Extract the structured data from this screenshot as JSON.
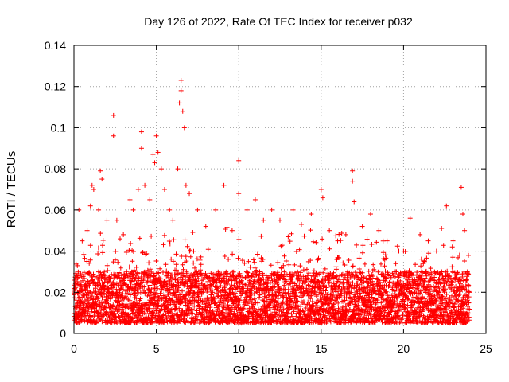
{
  "chart_data": {
    "type": "scatter",
    "title": "Day 126 of 2022, Rate Of TEC Index for receiver p032",
    "xlabel": "GPS time / hours",
    "ylabel": "ROTI / TECUs",
    "xlim": [
      0,
      25
    ],
    "ylim": [
      0,
      0.14
    ],
    "xticks": [
      0,
      5,
      10,
      15,
      20,
      25
    ],
    "yticks": [
      0,
      0.02,
      0.04,
      0.06,
      0.08,
      0.1,
      0.12,
      0.14
    ],
    "xtick_labels": [
      "0",
      "5",
      "10",
      "15",
      "20",
      "25"
    ],
    "ytick_labels": [
      "0",
      "0.02",
      "0.04",
      "0.06",
      "0.08",
      "0.1",
      "0.12",
      "0.14"
    ],
    "grid": true,
    "marker": "+",
    "color": "#ff0000",
    "data_x_range": [
      0,
      24
    ],
    "baseline_range": [
      0.005,
      0.03
    ],
    "series": [
      {
        "values": [
          [
            0.2,
            0.028
          ],
          [
            0.3,
            0.06
          ],
          [
            0.5,
            0.045
          ],
          [
            0.8,
            0.05
          ],
          [
            1.0,
            0.062
          ],
          [
            1.1,
            0.072
          ],
          [
            1.2,
            0.07
          ],
          [
            1.5,
            0.06
          ],
          [
            1.6,
            0.079
          ],
          [
            1.7,
            0.075
          ],
          [
            2.0,
            0.055
          ],
          [
            2.4,
            0.106
          ],
          [
            2.4,
            0.096
          ],
          [
            2.6,
            0.055
          ],
          [
            3.0,
            0.048
          ],
          [
            3.4,
            0.065
          ],
          [
            3.6,
            0.06
          ],
          [
            3.9,
            0.07
          ],
          [
            4.1,
            0.098
          ],
          [
            4.1,
            0.09
          ],
          [
            4.3,
            0.072
          ],
          [
            4.6,
            0.065
          ],
          [
            4.8,
            0.087
          ],
          [
            4.9,
            0.083
          ],
          [
            5.0,
            0.096
          ],
          [
            5.1,
            0.088
          ],
          [
            5.3,
            0.08
          ],
          [
            5.5,
            0.07
          ],
          [
            5.8,
            0.06
          ],
          [
            6.0,
            0.055
          ],
          [
            6.3,
            0.08
          ],
          [
            6.4,
            0.112
          ],
          [
            6.5,
            0.123
          ],
          [
            6.5,
            0.118
          ],
          [
            6.6,
            0.108
          ],
          [
            6.7,
            0.1
          ],
          [
            6.8,
            0.072
          ],
          [
            7.0,
            0.068
          ],
          [
            7.5,
            0.06
          ],
          [
            8.0,
            0.052
          ],
          [
            8.6,
            0.06
          ],
          [
            9.1,
            0.072
          ],
          [
            9.6,
            0.05
          ],
          [
            10.0,
            0.084
          ],
          [
            10.0,
            0.068
          ],
          [
            10.5,
            0.06
          ],
          [
            11.0,
            0.065
          ],
          [
            11.5,
            0.055
          ],
          [
            12.0,
            0.06
          ],
          [
            12.5,
            0.055
          ],
          [
            13.0,
            0.047
          ],
          [
            13.3,
            0.06
          ],
          [
            13.8,
            0.053
          ],
          [
            14.4,
            0.058
          ],
          [
            15.0,
            0.07
          ],
          [
            15.1,
            0.066
          ],
          [
            15.5,
            0.05
          ],
          [
            16.0,
            0.045
          ],
          [
            16.5,
            0.048
          ],
          [
            16.9,
            0.079
          ],
          [
            16.9,
            0.074
          ],
          [
            17.0,
            0.064
          ],
          [
            17.5,
            0.052
          ],
          [
            18.0,
            0.058
          ],
          [
            18.5,
            0.05
          ],
          [
            19.0,
            0.045
          ],
          [
            19.5,
            0.03
          ],
          [
            20.0,
            0.04
          ],
          [
            20.4,
            0.056
          ],
          [
            21.0,
            0.048
          ],
          [
            21.5,
            0.045
          ],
          [
            22.0,
            0.04
          ],
          [
            22.6,
            0.062
          ],
          [
            23.0,
            0.045
          ],
          [
            23.5,
            0.071
          ],
          [
            23.6,
            0.058
          ],
          [
            23.7,
            0.05
          ]
        ]
      }
    ]
  }
}
